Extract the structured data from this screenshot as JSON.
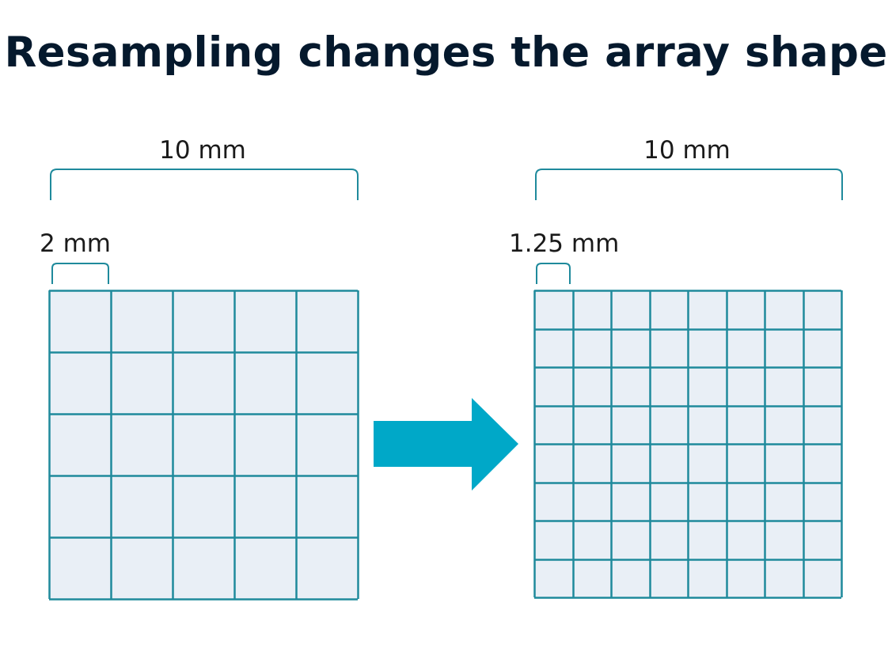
{
  "title": "Resampling changes the array shape",
  "left_grid": {
    "total_label": "10 mm",
    "cell_label": "2 mm",
    "cells_per_side": 5
  },
  "right_grid": {
    "total_label": "10 mm",
    "cell_label": "1.25 mm",
    "cells_per_side": 8
  },
  "colors": {
    "title": "#05192d",
    "grid_line": "#1f8a9c",
    "cell_fill": "#e9eff6",
    "arrow": "#00a8c8",
    "bracket": "#1f8a9c"
  }
}
